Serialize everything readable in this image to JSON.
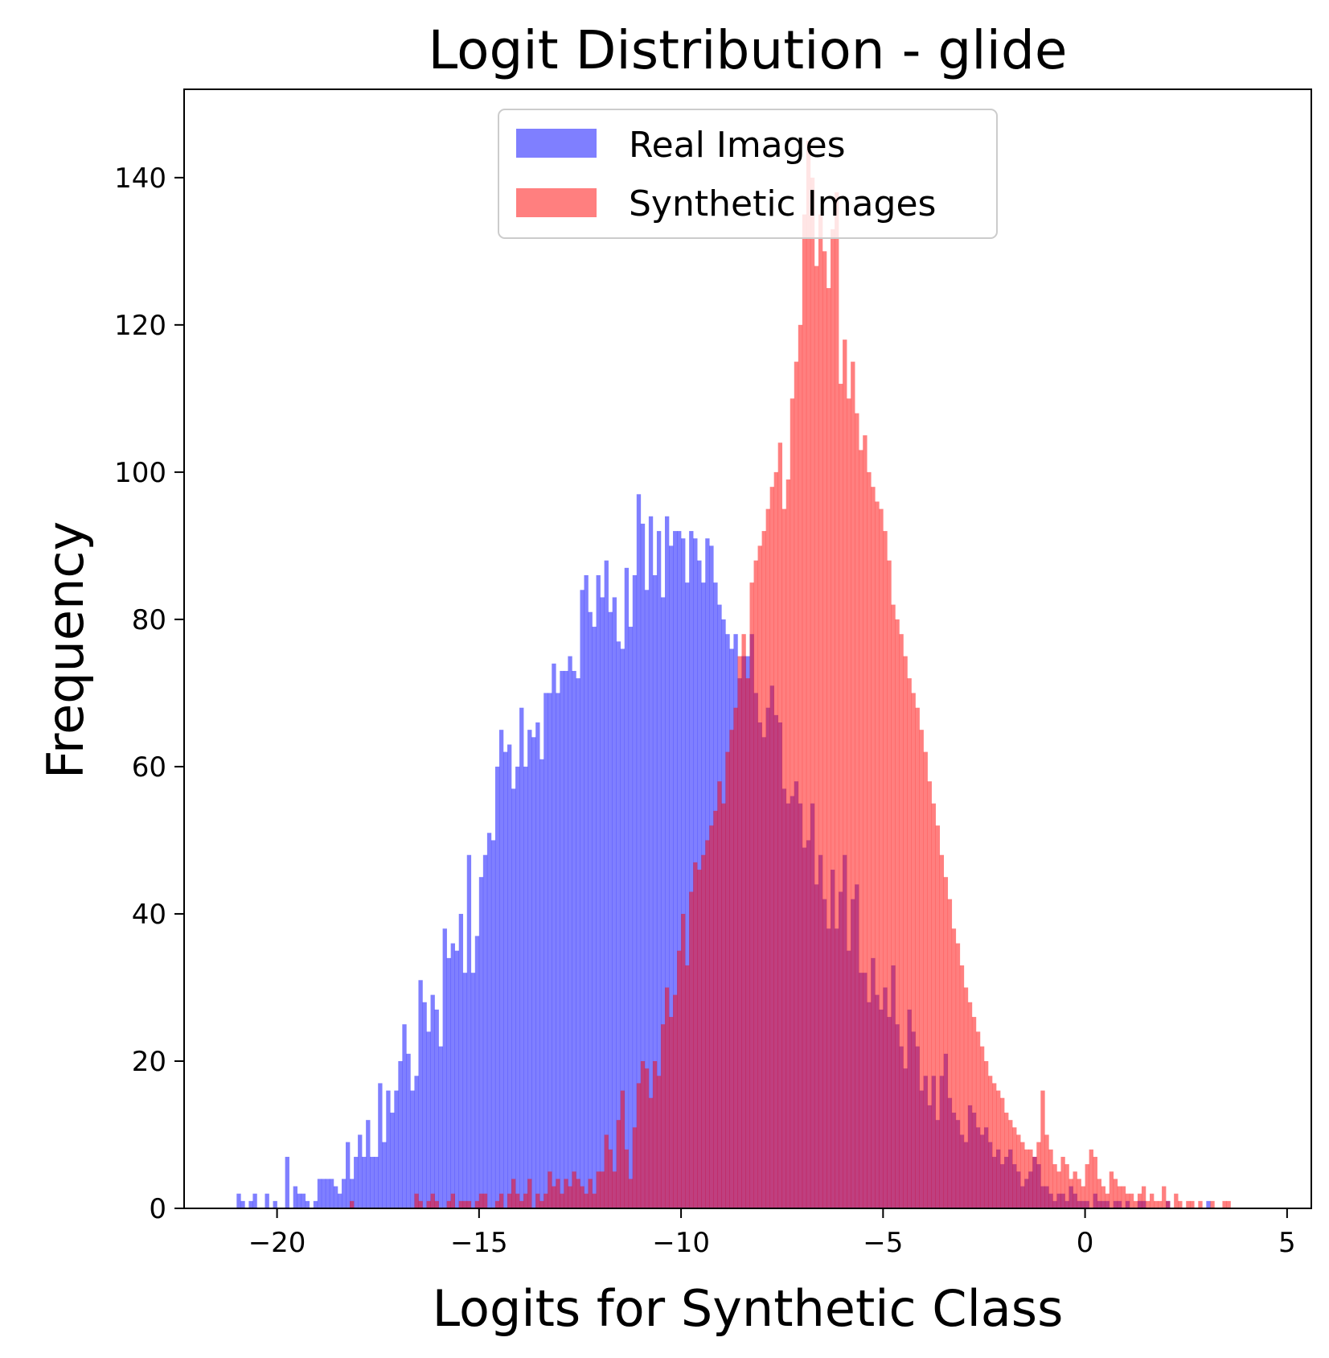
{
  "chart_data": {
    "type": "histogram",
    "title": "Logit Distribution - glide",
    "xlabel": "Logits for Synthetic Class",
    "ylabel": "Frequency",
    "xlim": [
      -22.3,
      5.6
    ],
    "ylim": [
      0,
      152
    ],
    "xticks": [
      -20,
      -15,
      -10,
      -5,
      0,
      5
    ],
    "xtick_labels": [
      "−20",
      "−15",
      "−10",
      "−5",
      "0",
      "5"
    ],
    "yticks": [
      0,
      20,
      40,
      60,
      80,
      100,
      120,
      140
    ],
    "ytick_labels": [
      "0",
      "20",
      "40",
      "60",
      "80",
      "100",
      "120",
      "140"
    ],
    "grid": false,
    "legend_position": "upper center",
    "bin_width": 0.1,
    "series": [
      {
        "name": "Real Images",
        "color": "#0000ff",
        "alpha": 0.5,
        "bins_start": -21.0,
        "counts": [
          2,
          1,
          0,
          1,
          2,
          0,
          0,
          2,
          0,
          1,
          0,
          0,
          7,
          0,
          3,
          2,
          2,
          1,
          0,
          1,
          4,
          4,
          4,
          4,
          3,
          2,
          4,
          9,
          4,
          7,
          10,
          7,
          12,
          7,
          7,
          17,
          9,
          16,
          13,
          16,
          20,
          25,
          21,
          16,
          18,
          31,
          28,
          24,
          29,
          27,
          22,
          38,
          34,
          36,
          35,
          40,
          32,
          48,
          32,
          37,
          45,
          48,
          51,
          50,
          60,
          65,
          62,
          63,
          57,
          60,
          68,
          60,
          65,
          64,
          66,
          61,
          70,
          70,
          74,
          70,
          73,
          73,
          75,
          73,
          72,
          84,
          86,
          81,
          79,
          86,
          83,
          88,
          81,
          83,
          77,
          76,
          87,
          79,
          86,
          97,
          93,
          84,
          94,
          86,
          92,
          83,
          94,
          90,
          92,
          92,
          91,
          85,
          92,
          91,
          88,
          85,
          91,
          90,
          85,
          82,
          80,
          78,
          76,
          78,
          72,
          75,
          75,
          78,
          70,
          66,
          64,
          68,
          71,
          67,
          66,
          57,
          55,
          56,
          58,
          55,
          49,
          50,
          55,
          44,
          48,
          42,
          38,
          46,
          38,
          43,
          48,
          35,
          42,
          44,
          32,
          32,
          28,
          34,
          29,
          27,
          30,
          26,
          33,
          25,
          22,
          19,
          27,
          24,
          22,
          16,
          18,
          14,
          18,
          12,
          18,
          21,
          15,
          13,
          12,
          10,
          9,
          14,
          13,
          11,
          10,
          11,
          9,
          7,
          8,
          6,
          7,
          8,
          6,
          5,
          3,
          4,
          5,
          7,
          6,
          3,
          3,
          2,
          1,
          2,
          2,
          1,
          3,
          2,
          1,
          1,
          1,
          0,
          2,
          1,
          1,
          1,
          0,
          1,
          1,
          0,
          1,
          0,
          0,
          1,
          1,
          0,
          0,
          0,
          0,
          0,
          1,
          0,
          0,
          0,
          0,
          0,
          0,
          0,
          0,
          0,
          1
        ]
      },
      {
        "name": "Synthetic Images",
        "color": "#ff0000",
        "alpha": 0.5,
        "bins_start": -18.2,
        "counts": [
          1,
          0,
          0,
          0,
          0,
          0,
          0,
          0,
          0,
          0,
          0,
          0,
          0,
          0,
          0,
          0,
          2,
          1,
          0,
          1,
          2,
          1,
          0,
          0,
          1,
          2,
          0,
          1,
          1,
          1,
          0,
          1,
          2,
          2,
          0,
          0,
          1,
          2,
          0,
          2,
          4,
          2,
          1,
          2,
          4,
          0,
          2,
          1,
          2,
          5,
          3,
          4,
          2,
          4,
          3,
          5,
          4,
          3,
          2,
          4,
          2,
          5,
          5,
          10,
          8,
          5,
          12,
          16,
          8,
          4,
          11,
          17,
          20,
          19,
          15,
          20,
          18,
          25,
          30,
          26,
          29,
          35,
          40,
          33,
          43,
          47,
          46,
          48,
          50,
          52,
          54,
          58,
          55,
          62,
          65,
          68,
          75,
          78,
          72,
          85,
          88,
          90,
          92,
          95,
          98,
          100,
          104,
          95,
          99,
          110,
          115,
          120,
          135,
          145,
          140,
          128,
          135,
          130,
          125,
          133,
          138,
          112,
          118,
          110,
          115,
          108,
          103,
          105,
          100,
          98,
          96,
          95,
          92,
          88,
          82,
          80,
          78,
          75,
          72,
          70,
          68,
          65,
          62,
          58,
          55,
          52,
          48,
          45,
          42,
          38,
          36,
          33,
          30,
          28,
          26,
          24,
          22,
          20,
          18,
          17,
          16,
          15,
          13,
          12,
          11,
          10,
          9,
          8,
          8,
          7,
          9,
          16,
          10,
          8,
          6,
          5,
          7,
          6,
          4,
          5,
          4,
          3,
          6,
          8,
          7,
          4,
          3,
          2,
          5,
          4,
          3,
          3,
          2,
          2,
          1,
          2,
          3,
          1,
          2,
          1,
          1,
          3,
          1,
          0,
          2,
          1,
          0,
          1,
          1,
          0,
          1,
          0,
          0,
          1,
          0,
          0,
          1,
          1
        ]
      }
    ]
  }
}
